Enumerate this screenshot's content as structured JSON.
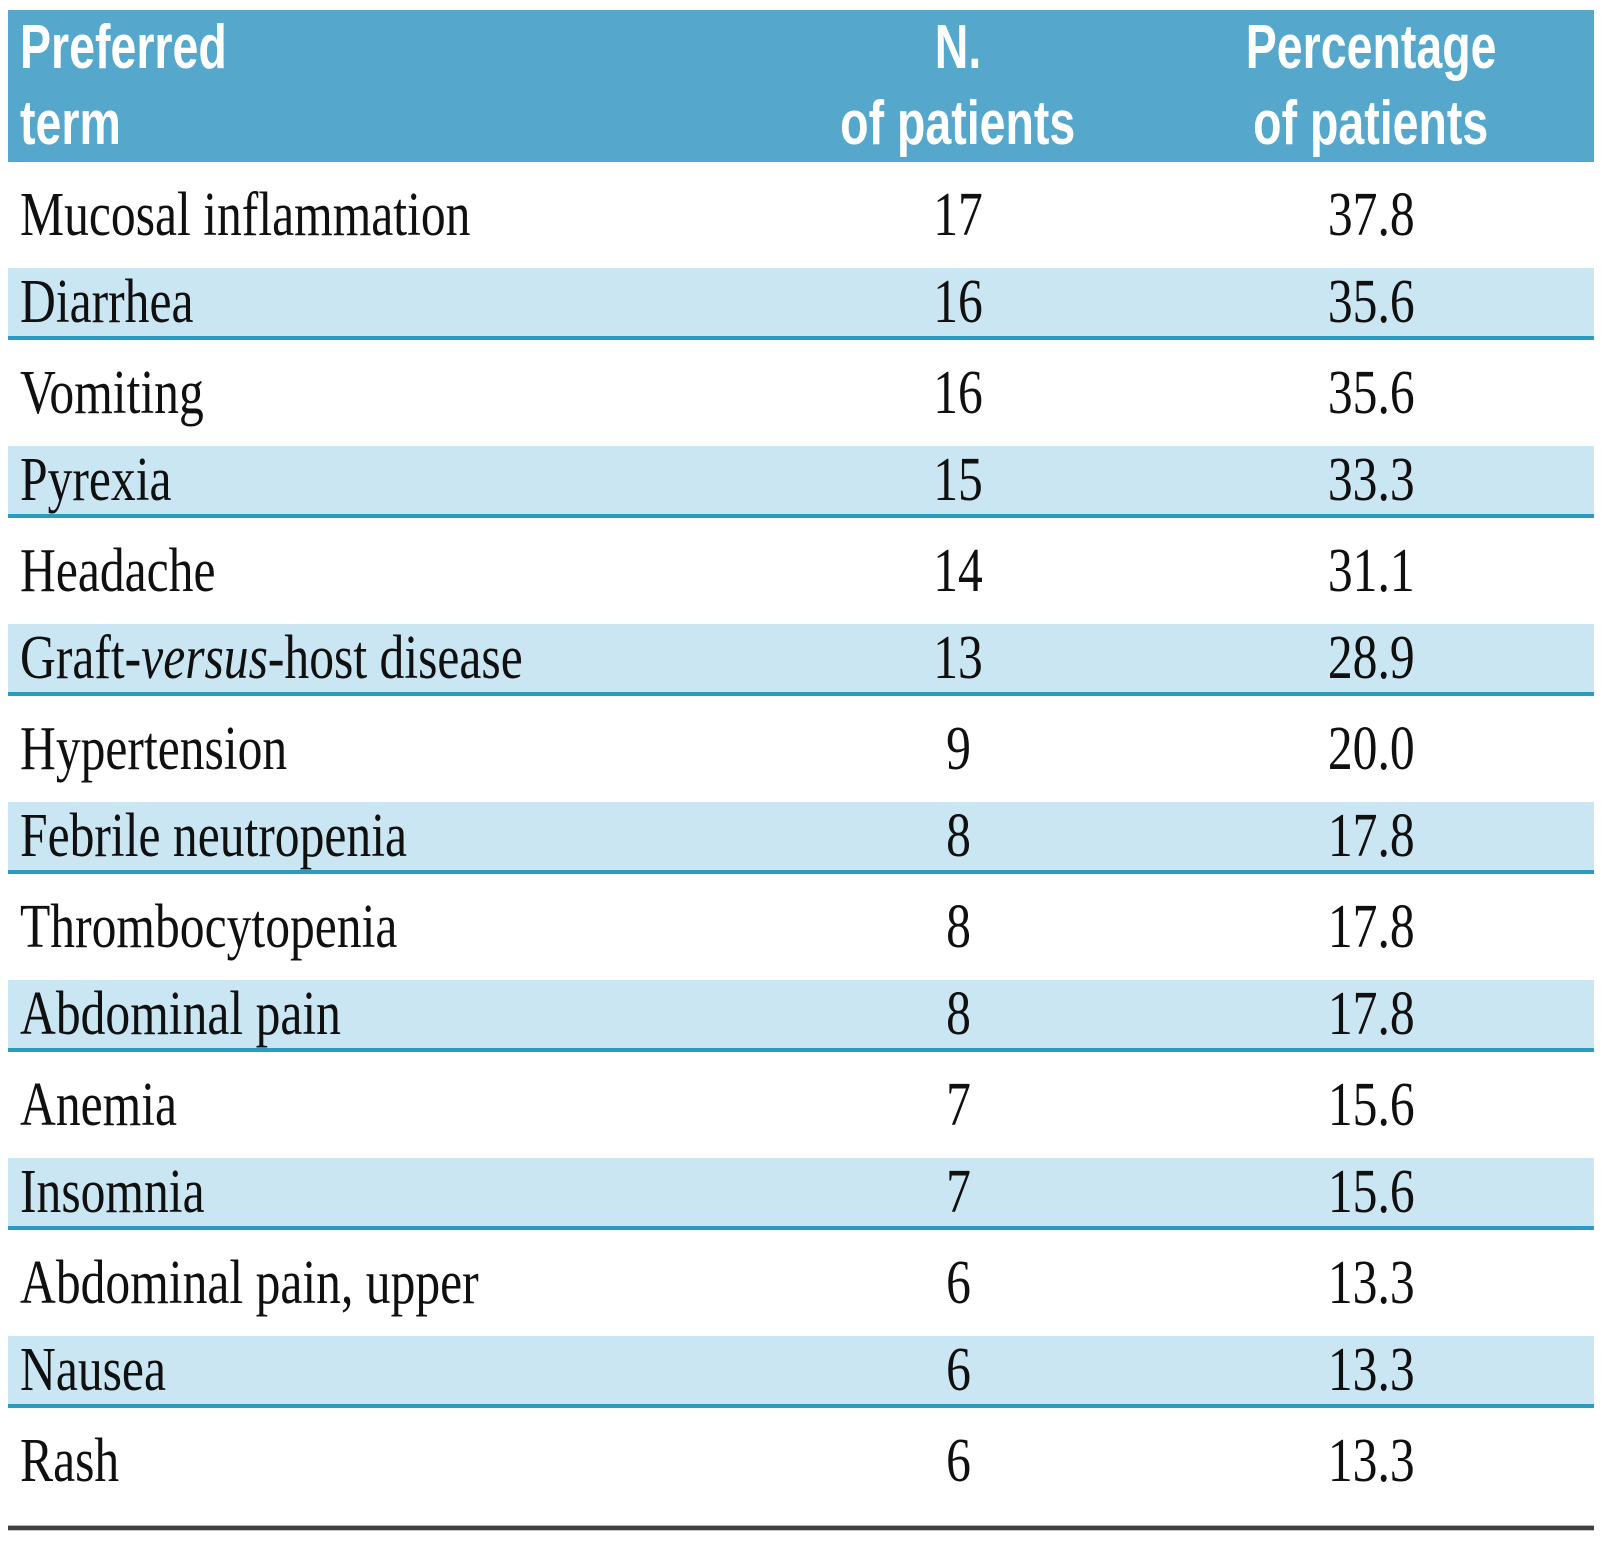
{
  "header": {
    "term": {
      "line1": "Preferred",
      "line2": "term"
    },
    "n": {
      "line1": "N.",
      "line2": "of patients"
    },
    "pct": {
      "line1": "Percentage",
      "line2": "of patients"
    }
  },
  "rows": [
    {
      "term_parts": [
        {
          "text": "Mucosal inflammation",
          "italic": false
        }
      ],
      "n": "17",
      "pct": "37.8",
      "shaded": false
    },
    {
      "term_parts": [
        {
          "text": "Diarrhea",
          "italic": false
        }
      ],
      "n": "16",
      "pct": "35.6",
      "shaded": true
    },
    {
      "term_parts": [
        {
          "text": "Vomiting",
          "italic": false
        }
      ],
      "n": "16",
      "pct": "35.6",
      "shaded": false
    },
    {
      "term_parts": [
        {
          "text": "Pyrexia",
          "italic": false
        }
      ],
      "n": "15",
      "pct": "33.3",
      "shaded": true
    },
    {
      "term_parts": [
        {
          "text": "Headache",
          "italic": false
        }
      ],
      "n": "14",
      "pct": "31.1",
      "shaded": false
    },
    {
      "term_parts": [
        {
          "text": "Graft-",
          "italic": false
        },
        {
          "text": "versus",
          "italic": true
        },
        {
          "text": "-host disease",
          "italic": false
        }
      ],
      "n": "13",
      "pct": "28.9",
      "shaded": true
    },
    {
      "term_parts": [
        {
          "text": "Hypertension",
          "italic": false
        }
      ],
      "n": "9",
      "pct": "20.0",
      "shaded": false
    },
    {
      "term_parts": [
        {
          "text": "Febrile neutropenia",
          "italic": false
        }
      ],
      "n": "8",
      "pct": "17.8",
      "shaded": true
    },
    {
      "term_parts": [
        {
          "text": "Thrombocytopenia",
          "italic": false
        }
      ],
      "n": "8",
      "pct": "17.8",
      "shaded": false
    },
    {
      "term_parts": [
        {
          "text": "Abdominal pain",
          "italic": false
        }
      ],
      "n": "8",
      "pct": "17.8",
      "shaded": true
    },
    {
      "term_parts": [
        {
          "text": "Anemia",
          "italic": false
        }
      ],
      "n": "7",
      "pct": "15.6",
      "shaded": false
    },
    {
      "term_parts": [
        {
          "text": "Insomnia",
          "italic": false
        }
      ],
      "n": "7",
      "pct": "15.6",
      "shaded": true
    },
    {
      "term_parts": [
        {
          "text": "Abdominal pain, upper",
          "italic": false
        }
      ],
      "n": "6",
      "pct": "13.3",
      "shaded": false
    },
    {
      "term_parts": [
        {
          "text": "Nausea",
          "italic": false
        }
      ],
      "n": "6",
      "pct": "13.3",
      "shaded": true
    },
    {
      "term_parts": [
        {
          "text": "Rash",
          "italic": false
        }
      ],
      "n": "6",
      "pct": "13.3",
      "shaded": false
    }
  ],
  "colors": {
    "header_bg": "#55a8cc",
    "header_text": "#ffffff",
    "shaded_row_bg": "#cbe6f3",
    "shaded_row_border": "#2b9cc0",
    "body_text": "#101010",
    "bottom_rule": "#3f3f3f"
  },
  "chart_data": {
    "type": "table",
    "title": "",
    "columns": [
      "Preferred term",
      "N. of patients",
      "Percentage of patients"
    ],
    "rows": [
      [
        "Mucosal inflammation",
        17,
        37.8
      ],
      [
        "Diarrhea",
        16,
        35.6
      ],
      [
        "Vomiting",
        16,
        35.6
      ],
      [
        "Pyrexia",
        15,
        33.3
      ],
      [
        "Headache",
        14,
        31.1
      ],
      [
        "Graft-versus-host disease",
        13,
        28.9
      ],
      [
        "Hypertension",
        9,
        20.0
      ],
      [
        "Febrile neutropenia",
        8,
        17.8
      ],
      [
        "Thrombocytopenia",
        8,
        17.8
      ],
      [
        "Abdominal pain",
        8,
        17.8
      ],
      [
        "Anemia",
        7,
        15.6
      ],
      [
        "Insomnia",
        7,
        15.6
      ],
      [
        "Abdominal pain, upper",
        6,
        13.3
      ],
      [
        "Nausea",
        6,
        13.3
      ],
      [
        "Rash",
        6,
        13.3
      ]
    ]
  }
}
